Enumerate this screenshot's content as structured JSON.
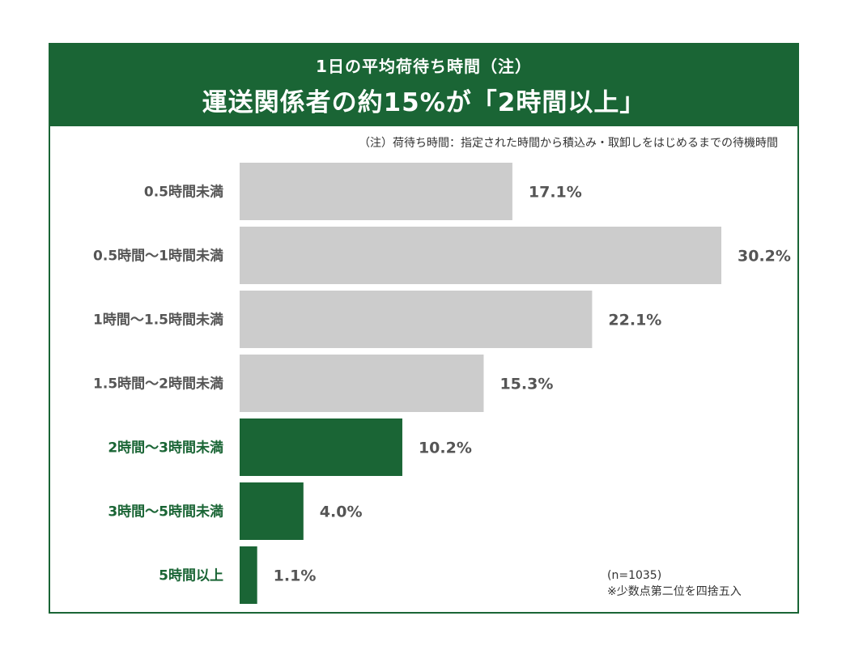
{
  "header": {
    "subtitle": "1日の平均荷待ち時間（注）",
    "title": "運送関係者の約15%が「2時間以上」"
  },
  "note": "（注）荷待ち時間：指定された時間から積込み・取卸しをはじめるまでの待機時間",
  "footnote": {
    "sample": "(n=1035)",
    "rounding": "※少数点第二位を四捨五入"
  },
  "colors": {
    "brand": "#1a6535",
    "bar_gray": "#cccccc",
    "label_gray": "#555555"
  },
  "chart_data": {
    "type": "bar",
    "orientation": "horizontal",
    "categories": [
      "0.5時間未満",
      "0.5時間〜1時間未満",
      "1時間〜1.5時間未満",
      "1.5時間〜2時間未満",
      "2時間〜3時間未満",
      "3時間〜5時間未満",
      "5時間以上"
    ],
    "values": [
      17.1,
      30.2,
      22.1,
      15.3,
      10.2,
      4.0,
      1.1
    ],
    "value_labels": [
      "17.1%",
      "30.2%",
      "22.1%",
      "15.3%",
      "10.2%",
      "4.0%",
      "1.1%"
    ],
    "highlight": [
      false,
      false,
      false,
      false,
      true,
      true,
      true
    ],
    "unit": "%",
    "xlim": [
      0,
      30.2
    ],
    "grid": false,
    "legend": "none"
  }
}
